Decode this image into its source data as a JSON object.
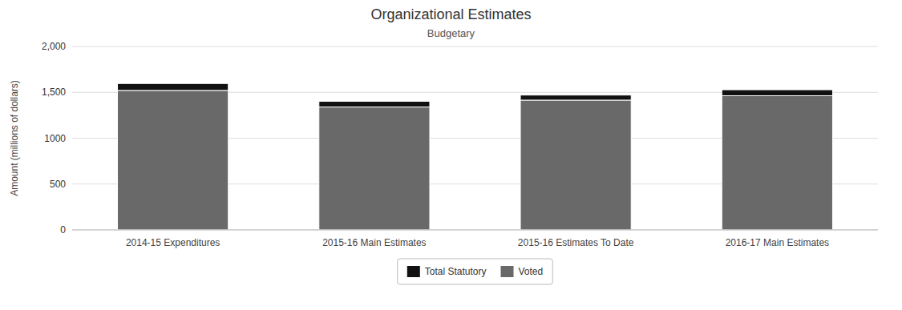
{
  "chart_data": {
    "type": "bar",
    "stacked": true,
    "title": "Organizational Estimates",
    "subtitle": "Budgetary",
    "ylabel": "Amount (millions of dollars)",
    "categories": [
      "2014-15 Expenditures",
      "2015-16 Main Estimates",
      "2015-16 Estimates To Date",
      "2016-17 Main Estimates"
    ],
    "series": [
      {
        "name": "Voted",
        "color": "#696969",
        "values": [
          1521,
          1340,
          1415,
          1463
        ]
      },
      {
        "name": "Total Statutory",
        "color": "#111111",
        "values": [
          75,
          62,
          55,
          65
        ]
      }
    ],
    "ylim": [
      0,
      2000
    ],
    "yticks": [
      0,
      500,
      1000,
      {
        "value": 1500,
        "label": "1,500"
      },
      {
        "value": 2000,
        "label": "2,000"
      }
    ],
    "grid": true,
    "legend": "bottom"
  }
}
